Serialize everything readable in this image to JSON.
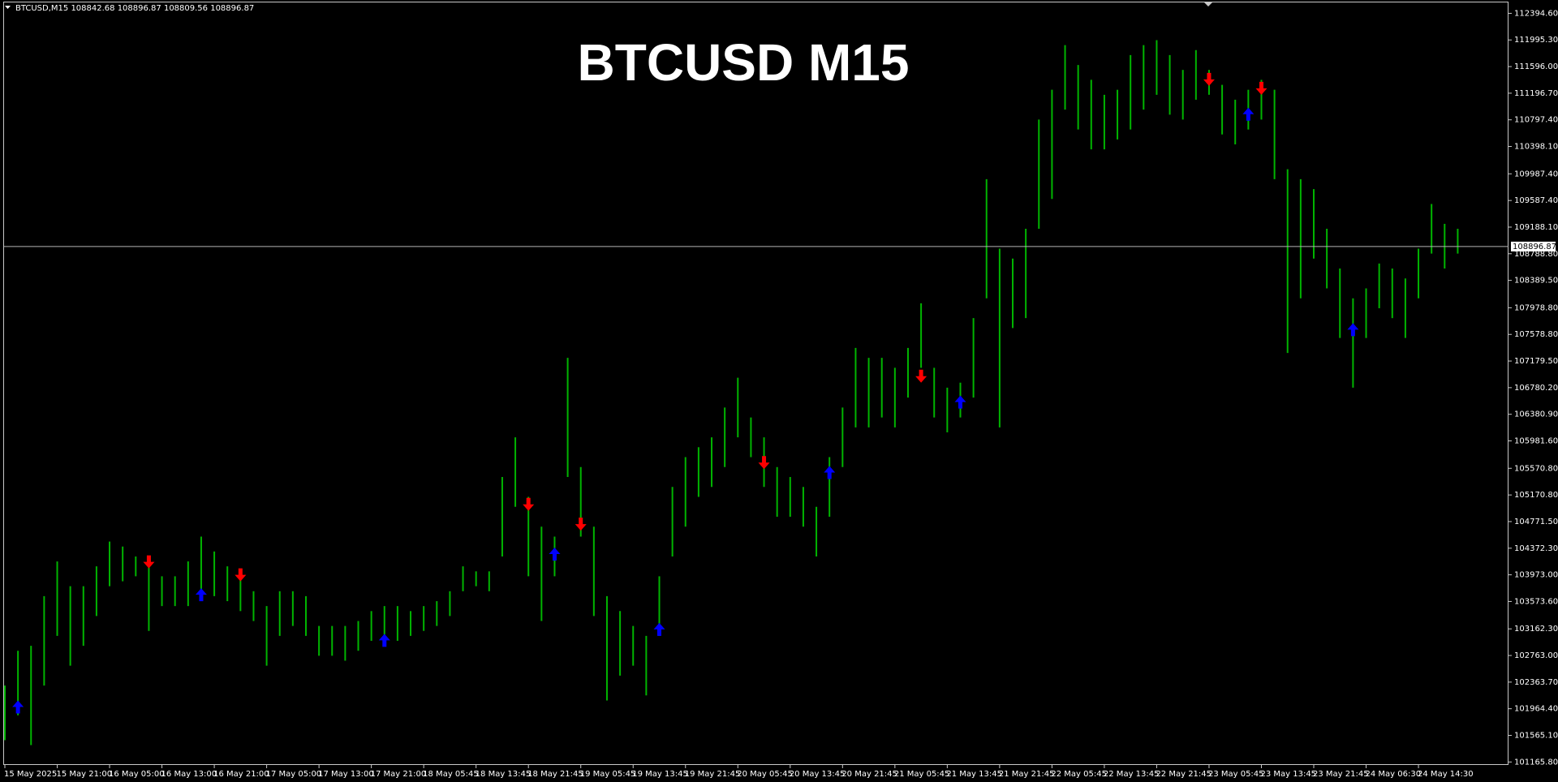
{
  "chart_data": {
    "type": "bar",
    "title": "BTCUSD M15",
    "header": "BTCUSD,M15  108842.68 108896.87 108809.56 108896.87",
    "color": "#00b400",
    "categories": [
      "15 May 2025",
      null,
      null,
      null,
      "15 May 21:00",
      null,
      null,
      null,
      "16 May 05:00",
      null,
      null,
      null,
      "16 May 13:00",
      null,
      null,
      null,
      "16 May 21:00",
      null,
      null,
      null,
      "17 May 05:00",
      null,
      null,
      null,
      "17 May 13:00",
      null,
      null,
      null,
      "17 May 21:00",
      null,
      null,
      null,
      "18 May 05:45",
      null,
      null,
      null,
      "18 May 13:45",
      null,
      null,
      null,
      "18 May 21:45",
      null,
      null,
      null,
      "19 May 05:45",
      null,
      null,
      null,
      "19 May 13:45",
      null,
      null,
      null,
      "19 May 21:45",
      null,
      null,
      null,
      "20 May 05:45",
      null,
      null,
      null,
      "20 May 13:45",
      null,
      null,
      null,
      "20 May 21:45",
      null,
      null,
      null,
      "21 May 05:45",
      null,
      null,
      null,
      "21 May 13:45",
      null,
      null,
      null,
      "21 May 21:45",
      null,
      null,
      null,
      "22 May 05:45",
      null,
      null,
      null,
      "22 May 13:45",
      null,
      null,
      null,
      "22 May 21:45",
      null,
      null,
      null,
      "23 May 05:45",
      null,
      null,
      null,
      "23 May 13:45",
      null,
      null,
      null,
      "23 May 21:45",
      null,
      null,
      null,
      "24 May 06:30",
      null,
      null,
      null,
      "24 May 14:30",
      null,
      null,
      null
    ],
    "high": [
      102312,
      102834,
      102908,
      103653,
      104174,
      103802,
      103802,
      104100,
      104472,
      104397,
      104248,
      104174,
      103951,
      103951,
      104174,
      104546,
      104323,
      104100,
      103951,
      103727,
      103504,
      103727,
      103727,
      103653,
      103206,
      103206,
      103206,
      103280,
      103429,
      103504,
      103504,
      103429,
      103504,
      103578,
      103727,
      104100,
      104025,
      104025,
      105440,
      106035,
      105142,
      104695,
      104546,
      107227,
      105589,
      104695,
      103653,
      103429,
      103206,
      103057,
      103951,
      105291,
      105738,
      105887,
      106035,
      106482,
      106929,
      106333,
      106035,
      105589,
      105440,
      105291,
      104993,
      105738,
      106482,
      107376,
      107227,
      107227,
      107078,
      107376,
      108046,
      107078,
      106780,
      106855,
      107823,
      109907,
      108865,
      108716,
      109163,
      110801,
      111248,
      111918,
      111620,
      111397,
      111173,
      111248,
      111769,
      111918,
      111992,
      111769,
      111546,
      111843,
      111546,
      111322,
      111099,
      111248,
      111397,
      111248,
      110056,
      109907,
      109758,
      109163,
      108567,
      108120,
      108269,
      108642,
      108567,
      108418,
      108865,
      109535,
      109237,
      109163
    ],
    "low": [
      101493,
      101866,
      101419,
      102312,
      103057,
      102610,
      102908,
      103355,
      103802,
      103876,
      103951,
      103132,
      103504,
      103504,
      103504,
      103653,
      103653,
      103578,
      103429,
      103280,
      102610,
      103057,
      103206,
      103057,
      102759,
      102759,
      102685,
      102834,
      102983,
      102983,
      102983,
      103057,
      103132,
      103206,
      103355,
      103727,
      103802,
      103727,
      104248,
      104993,
      103951,
      103280,
      103951,
      105440,
      104546,
      103355,
      102089,
      102461,
      102610,
      102164,
      103057,
      104248,
      104695,
      105142,
      105291,
      105589,
      106035,
      105738,
      105291,
      104844,
      104844,
      104695,
      104248,
      104844,
      105589,
      106184,
      106184,
      106333,
      106184,
      106631,
      107078,
      106333,
      106110,
      106333,
      106631,
      108120,
      106184,
      107674,
      107823,
      109163,
      109610,
      110950,
      110652,
      110354,
      110354,
      110503,
      110652,
      110950,
      111173,
      110875,
      110801,
      111099,
      111173,
      110578,
      110429,
      110652,
      110801,
      109907,
      107301,
      108120,
      108716,
      108269,
      107525,
      106780,
      107525,
      107971,
      107823,
      107525,
      108120,
      108791,
      108567,
      108791
    ],
    "buy_arrows": {
      "color": "#0000ff",
      "values": [
        null,
        102089,
        null,
        null,
        null,
        null,
        null,
        null,
        null,
        null,
        null,
        null,
        null,
        null,
        null,
        103772,
        null,
        null,
        null,
        null,
        null,
        null,
        null,
        null,
        null,
        null,
        null,
        null,
        null,
        103087,
        null,
        null,
        null,
        null,
        null,
        null,
        null,
        null,
        null,
        null,
        null,
        null,
        104382,
        null,
        null,
        null,
        null,
        null,
        null,
        null,
        103251,
        null,
        null,
        null,
        null,
        null,
        null,
        null,
        null,
        null,
        null,
        null,
        null,
        105604,
        null,
        null,
        null,
        null,
        null,
        null,
        null,
        null,
        null,
        106661,
        null,
        null,
        null,
        null,
        null,
        null,
        null,
        null,
        null,
        null,
        null,
        null,
        null,
        null,
        null,
        null,
        null,
        null,
        null,
        null,
        null,
        110980,
        null,
        null,
        null,
        null,
        null,
        null,
        null,
        107748,
        null,
        null,
        null,
        null,
        null,
        null,
        null,
        null
      ]
    },
    "sell_arrows": {
      "color": "#ff0000",
      "values": [
        null,
        null,
        null,
        null,
        null,
        null,
        null,
        null,
        null,
        null,
        null,
        104070,
        null,
        null,
        null,
        null,
        null,
        null,
        103876,
        null,
        null,
        null,
        null,
        null,
        null,
        null,
        null,
        null,
        null,
        null,
        null,
        null,
        null,
        null,
        null,
        null,
        null,
        null,
        null,
        null,
        104933,
        null,
        null,
        null,
        104636,
        null,
        null,
        null,
        null,
        null,
        null,
        null,
        null,
        null,
        null,
        null,
        null,
        null,
        105559,
        null,
        null,
        null,
        null,
        null,
        null,
        null,
        null,
        null,
        null,
        null,
        106855,
        null,
        null,
        null,
        null,
        null,
        null,
        null,
        null,
        null,
        null,
        null,
        null,
        null,
        null,
        null,
        null,
        null,
        null,
        null,
        null,
        null,
        111307,
        null,
        null,
        null,
        111173,
        null,
        null,
        null,
        null,
        null,
        null,
        null,
        null,
        null,
        null,
        null,
        null,
        null,
        null,
        null
      ]
    },
    "last_price": {
      "value": 108896.87,
      "label": "108896.87"
    },
    "ylim": [
      101121,
      112558
    ],
    "yticks": [
      {
        "value": 112394.6,
        "label": "112394.60"
      },
      {
        "value": 111995.3,
        "label": "111995.30"
      },
      {
        "value": 111596.0,
        "label": "111596.00"
      },
      {
        "value": 111196.7,
        "label": "111196.70"
      },
      {
        "value": 110797.4,
        "label": "110797.40"
      },
      {
        "value": 110398.1,
        "label": "110398.10"
      },
      {
        "value": 109987.4,
        "label": "109987.40"
      },
      {
        "value": 109587.4,
        "label": "109587.40"
      },
      {
        "value": 109188.1,
        "label": "109188.10"
      },
      {
        "value": 108788.8,
        "label": "108788.80"
      },
      {
        "value": 108389.5,
        "label": "108389.50"
      },
      {
        "value": 107978.8,
        "label": "107978.80"
      },
      {
        "value": 107578.8,
        "label": "107578.80"
      },
      {
        "value": 107179.5,
        "label": "107179.50"
      },
      {
        "value": 106780.2,
        "label": "106780.20"
      },
      {
        "value": 106380.9,
        "label": "106380.90"
      },
      {
        "value": 105981.6,
        "label": "105981.60"
      },
      {
        "value": 105570.8,
        "label": "105570.80"
      },
      {
        "value": 105170.8,
        "label": "105170.80"
      },
      {
        "value": 104771.5,
        "label": "104771.50"
      },
      {
        "value": 104372.3,
        "label": "104372.30"
      },
      {
        "value": 103973.0,
        "label": "103973.00"
      },
      {
        "value": 103573.6,
        "label": "103573.60"
      },
      {
        "value": 103162.3,
        "label": "103162.30"
      },
      {
        "value": 102763.0,
        "label": "102763.00"
      },
      {
        "value": 102363.7,
        "label": "102363.70"
      },
      {
        "value": 101964.4,
        "label": "101964.40"
      },
      {
        "value": 101565.1,
        "label": "101565.10"
      },
      {
        "value": 101165.8,
        "label": "101165.80"
      }
    ]
  }
}
